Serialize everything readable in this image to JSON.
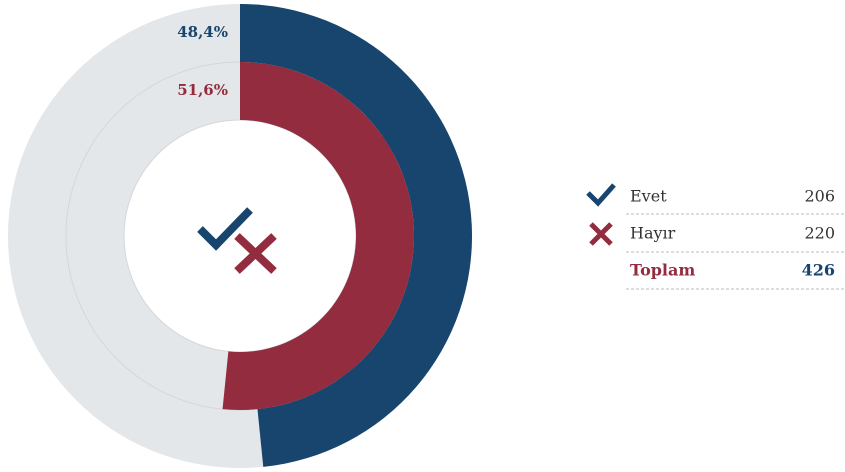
{
  "chart_data": {
    "type": "nested-donut",
    "series": [
      {
        "name": "Evet",
        "color": "#17456e",
        "values": [
          48.4
        ],
        "value_labels": [
          "48,4%"
        ]
      },
      {
        "name": "Hayır",
        "color": "#922c3e",
        "values": [
          51.6
        ],
        "value_labels": [
          "51,6%"
        ]
      }
    ],
    "track_color": "#e4e7ea",
    "legend": {
      "counts": [
        206,
        220
      ],
      "total_label": "Toplam",
      "total": 426
    }
  }
}
